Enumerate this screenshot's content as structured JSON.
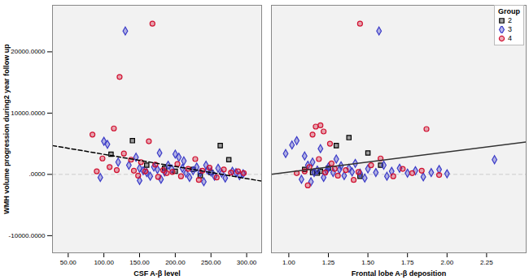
{
  "chart_data": [
    {
      "type": "scatter",
      "x_label": "CSF A-β level",
      "y_label": "WMH volume progression during2 year follow up",
      "xlim": [
        28,
        321
      ],
      "xticks": [
        {
          "value": 50,
          "label": "50.00"
        },
        {
          "value": 100,
          "label": "100.00"
        },
        {
          "value": 150,
          "label": "150.00"
        },
        {
          "value": 200,
          "label": "200.00"
        },
        {
          "value": 250,
          "label": "250.00"
        },
        {
          "value": 300,
          "label": "300.00"
        }
      ],
      "ylim": [
        -12800,
        27600
      ],
      "yticks": [
        {
          "value": -10000,
          "label": "-10000.0000"
        },
        {
          "value": 0,
          "label": ".0000"
        },
        {
          "value": 10000,
          "label": "10000.0000"
        },
        {
          "value": 20000,
          "label": "20000.0000"
        }
      ],
      "reference_line": {
        "y": 0,
        "line_style": "dashed",
        "color": "#cccccc"
      },
      "trend_line": {
        "x": [
          28,
          321
        ],
        "values": [
          4700,
          -1100
        ],
        "line_style": "dashed",
        "color": "#000000"
      },
      "series": [
        {
          "name": "2",
          "color": "#000000",
          "marker": "square",
          "x": [
            140,
            263,
            275,
            110,
            200,
            225,
            250,
            185,
            160,
            235
          ],
          "values": [
            5500,
            4700,
            2400,
            3300,
            500,
            800,
            300,
            1000,
            1500,
            -200
          ]
        },
        {
          "name": "3",
          "color": "#3c3cc8",
          "marker": "diamond",
          "x": [
            130,
            105,
            100,
            95,
            120,
            135,
            145,
            150,
            155,
            160,
            165,
            170,
            175,
            180,
            185,
            190,
            195,
            200,
            205,
            210,
            215,
            220,
            225,
            230,
            235,
            240,
            245,
            250,
            255,
            260,
            265,
            270,
            280,
            285,
            290,
            295,
            178,
            212,
            243,
            150
          ],
          "values": [
            23400,
            4900,
            5400,
            -500,
            2000,
            1500,
            2800,
            1000,
            600,
            300,
            -300,
            1200,
            800,
            -800,
            400,
            1500,
            900,
            3300,
            2800,
            1000,
            200,
            -500,
            600,
            1200,
            300,
            -1200,
            700,
            400,
            -300,
            1000,
            200,
            -600,
            500,
            300,
            -200,
            100,
            3500,
            2200,
            1500,
            -1000
          ]
        },
        {
          "name": "4",
          "color": "#d01030",
          "marker": "circle",
          "x": [
            168,
            122,
            84,
            114,
            90,
            98,
            108,
            118,
            128,
            138,
            142,
            148,
            152,
            158,
            163,
            172,
            176,
            183,
            188,
            196,
            203,
            208,
            218,
            228,
            233,
            238,
            248,
            258,
            268,
            278,
            288,
            296
          ],
          "values": [
            24600,
            15900,
            6500,
            7500,
            500,
            2600,
            1200,
            700,
            3400,
            2400,
            600,
            -200,
            2000,
            500,
            5400,
            1600,
            -400,
            700,
            200,
            400,
            1700,
            -300,
            900,
            2500,
            -900,
            600,
            1100,
            -500,
            800,
            300,
            500,
            200
          ]
        }
      ]
    },
    {
      "type": "scatter",
      "x_label": "Frontal lobe A-β deposition",
      "tick_labels": "x",
      "legend": "top-right",
      "legend_title": "Group",
      "xlim": [
        0.89,
        2.5
      ],
      "xticks": [
        {
          "value": 1,
          "label": "1.00"
        },
        {
          "value": 1.25,
          "label": "1.25"
        },
        {
          "value": 1.5,
          "label": "1.50"
        },
        {
          "value": 1.75,
          "label": "1.75"
        },
        {
          "value": 2,
          "label": "2.00"
        },
        {
          "value": 2.25,
          "label": "2.25"
        }
      ],
      "ylim": [
        -12800,
        27600
      ],
      "yticks": [
        -10000,
        0,
        10000,
        20000
      ],
      "reference_line": {
        "y": 0,
        "line_style": "dashed",
        "color": "#cccccc"
      },
      "trend_line": {
        "x": [
          0.89,
          2.5
        ],
        "values": [
          0,
          5300
        ],
        "line_style": "solid",
        "color": "#333333"
      },
      "series": [
        {
          "name": "2",
          "color": "#000000",
          "marker": "square",
          "x": [
            1.38,
            1.5,
            1.3,
            1.58,
            1.2,
            1.15,
            1.25,
            1.1,
            1.45,
            1.18
          ],
          "values": [
            6000,
            3500,
            4700,
            1500,
            500,
            300,
            1000,
            800,
            -300,
            200
          ]
        },
        {
          "name": "3",
          "color": "#3c3cc8",
          "marker": "diamond",
          "x": [
            1.57,
            1.02,
            0.98,
            1.05,
            1.1,
            1.12,
            1.15,
            1.18,
            1.2,
            1.22,
            1.25,
            1.28,
            1.3,
            1.32,
            1.35,
            1.38,
            1.4,
            1.42,
            1.45,
            1.48,
            1.5,
            1.55,
            1.6,
            1.62,
            1.65,
            1.7,
            1.75,
            1.8,
            1.85,
            1.9,
            1.95,
            2.0,
            2.3,
            1.08,
            1.14,
            1.24,
            1.33,
            1.16
          ],
          "values": [
            23400,
            4800,
            3400,
            5500,
            3000,
            1500,
            2000,
            700,
            4200,
            -500,
            1200,
            300,
            2500,
            800,
            -200,
            1000,
            400,
            1800,
            200,
            -600,
            900,
            300,
            1500,
            -300,
            500,
            1000,
            200,
            600,
            -400,
            300,
            800,
            100,
            2400,
            -800,
            -1200,
            600,
            1400,
            300
          ]
        },
        {
          "name": "4",
          "color": "#d01030",
          "marker": "circle",
          "x": [
            1.45,
            1.17,
            1.2,
            1.15,
            1.22,
            1.87,
            1.1,
            1.13,
            1.19,
            1.23,
            1.27,
            1.31,
            1.36,
            1.41,
            1.44,
            1.52,
            1.58,
            1.66,
            1.72,
            1.78,
            1.84,
            1.95,
            1.26,
            1.05,
            1.12,
            1.29
          ],
          "values": [
            24600,
            7800,
            8000,
            6500,
            7000,
            7400,
            500,
            1200,
            2500,
            300,
            1800,
            -200,
            700,
            -900,
            400,
            1500,
            2600,
            -300,
            900,
            200,
            600,
            -100,
            5000,
            200,
            -1800,
            900
          ]
        }
      ]
    }
  ]
}
